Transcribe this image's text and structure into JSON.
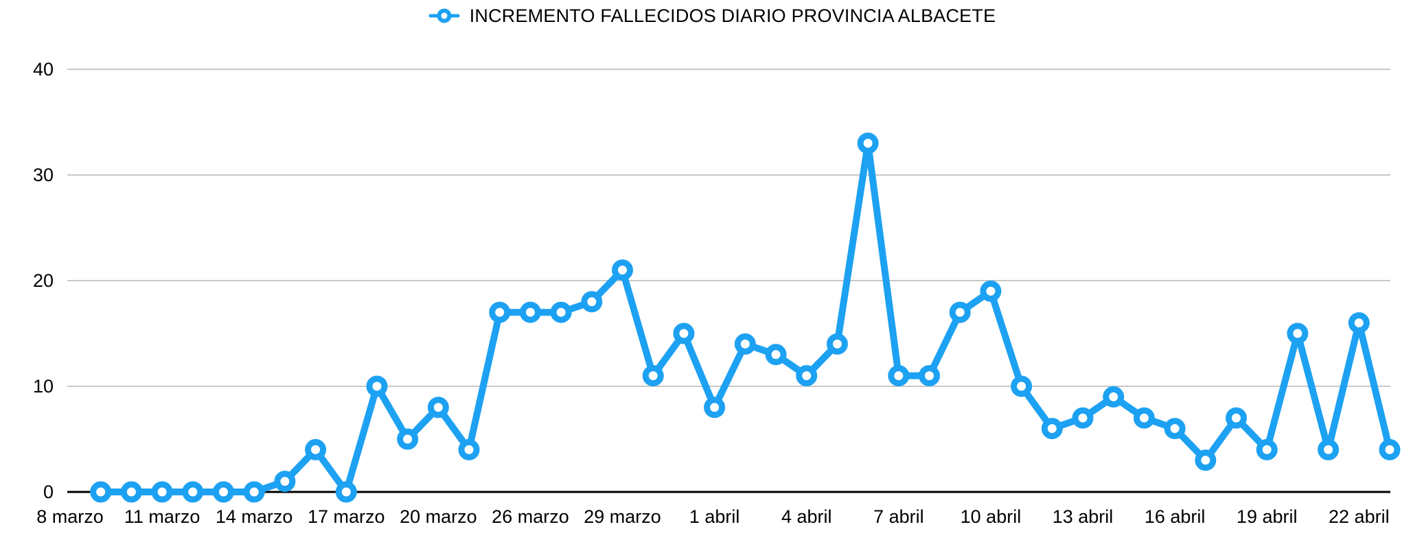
{
  "chart_data": {
    "type": "line",
    "title": "INCREMENTO FALLECIDOS DIARIO PROVINCIA ALBACETE",
    "legend_position": "top-center",
    "legend_marker": "ring-on-line",
    "series_color": "#1da1f2",
    "grid": "horizontal",
    "grid_color": "#c8c8c8",
    "axis_color": "#000000",
    "label_color": "#000000",
    "ylim": [
      0,
      40
    ],
    "yticks": [
      0,
      10,
      20,
      30,
      40
    ],
    "x_total_slots": 44,
    "x_ticks": [
      {
        "slot": 0,
        "label": "8 marzo"
      },
      {
        "slot": 3,
        "label": "11 marzo"
      },
      {
        "slot": 6,
        "label": "14 marzo"
      },
      {
        "slot": 9,
        "label": "17 marzo"
      },
      {
        "slot": 12,
        "label": "20 marzo"
      },
      {
        "slot": 15,
        "label": "26 marzo"
      },
      {
        "slot": 18,
        "label": "29 marzo"
      },
      {
        "slot": 21,
        "label": "1 abril"
      },
      {
        "slot": 24,
        "label": "4 abril"
      },
      {
        "slot": 27,
        "label": "7 abril"
      },
      {
        "slot": 30,
        "label": "10 abril"
      },
      {
        "slot": 33,
        "label": "13 abril"
      },
      {
        "slot": 36,
        "label": "16 abril"
      },
      {
        "slot": 39,
        "label": "19 abril"
      },
      {
        "slot": 42,
        "label": "22 abril"
      }
    ],
    "series": [
      {
        "name": "INCREMENTO FALLECIDOS DIARIO PROVINCIA ALBACETE",
        "start_slot": 1,
        "values": [
          0,
          0,
          0,
          0,
          0,
          0,
          1,
          4,
          0,
          10,
          5,
          8,
          4,
          17,
          17,
          17,
          18,
          21,
          11,
          15,
          8,
          14,
          13,
          11,
          14,
          33,
          11,
          11,
          17,
          19,
          10,
          6,
          7,
          9,
          7,
          6,
          3,
          7,
          4,
          15,
          4,
          16,
          4
        ]
      }
    ]
  }
}
